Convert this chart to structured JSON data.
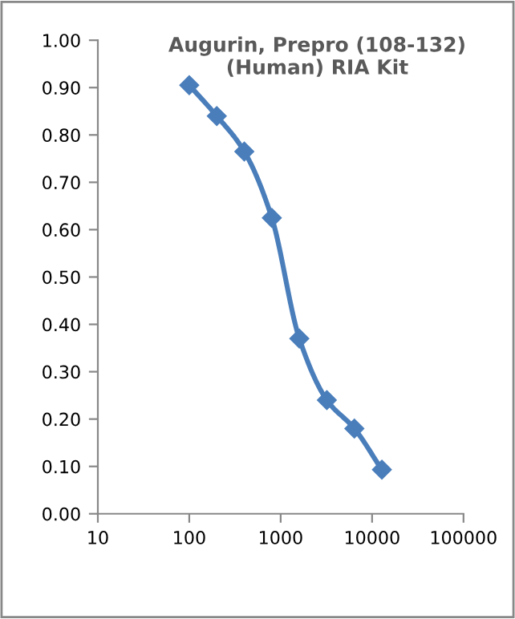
{
  "chart_data": {
    "type": "line",
    "title": "Augurin, Prepro (108-132)\n(Human) RIA Kit",
    "x": [
      100,
      200,
      400,
      800,
      1600,
      3200,
      6400,
      12800
    ],
    "series": [
      {
        "color": "#4a7ebb",
        "values": [
          0.905,
          0.84,
          0.765,
          0.625,
          0.37,
          0.24,
          0.18,
          0.093
        ]
      }
    ],
    "log": "x",
    "marker": "diamond",
    "line_style": "solid",
    "xlim": [
      10,
      100000
    ],
    "xticks": [
      10,
      100,
      1000,
      10000,
      100000
    ],
    "ylim": [
      0,
      1
    ],
    "yticks": [
      {
        "value": 0,
        "label": "0.00"
      },
      {
        "value": 0.1,
        "label": "0.10"
      },
      {
        "value": 0.2,
        "label": "0.20"
      },
      {
        "value": 0.3,
        "label": "0.30"
      },
      {
        "value": 0.4,
        "label": "0.40"
      },
      {
        "value": 0.5,
        "label": "0.50"
      },
      {
        "value": 0.6,
        "label": "0.60"
      },
      {
        "value": 0.7,
        "label": "0.70"
      },
      {
        "value": 0.8,
        "label": "0.80"
      },
      {
        "value": 0.9,
        "label": "0.90"
      },
      {
        "value": 1,
        "label": "1.00"
      }
    ]
  }
}
